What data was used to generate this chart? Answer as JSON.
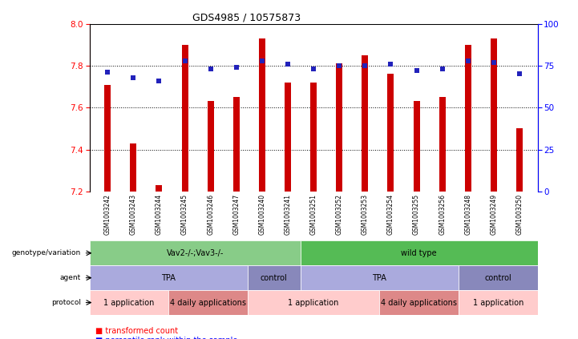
{
  "title": "GDS4985 / 10575873",
  "samples": [
    "GSM1003242",
    "GSM1003243",
    "GSM1003244",
    "GSM1003245",
    "GSM1003246",
    "GSM1003247",
    "GSM1003240",
    "GSM1003241",
    "GSM1003251",
    "GSM1003252",
    "GSM1003253",
    "GSM1003254",
    "GSM1003255",
    "GSM1003256",
    "GSM1003248",
    "GSM1003249",
    "GSM1003250"
  ],
  "bar_values": [
    7.71,
    7.43,
    7.23,
    7.9,
    7.63,
    7.65,
    7.93,
    7.72,
    7.72,
    7.81,
    7.85,
    7.76,
    7.63,
    7.65,
    7.9,
    7.93,
    7.5
  ],
  "dot_values": [
    71,
    68,
    66,
    78,
    73,
    74,
    78,
    76,
    73,
    75,
    75,
    76,
    72,
    73,
    78,
    77,
    70
  ],
  "ylim_left": [
    7.2,
    8.0
  ],
  "ylim_right": [
    0,
    100
  ],
  "yticks_left": [
    7.2,
    7.4,
    7.6,
    7.8,
    8.0
  ],
  "yticks_right": [
    0,
    25,
    50,
    75,
    100
  ],
  "bar_color": "#cc0000",
  "dot_color": "#2222bb",
  "bar_bottom": 7.2,
  "bar_width": 0.25,
  "genotype_row": [
    {
      "label": "Vav2-/-;Vav3-/-",
      "start": 0,
      "end": 8,
      "color": "#88cc88"
    },
    {
      "label": "wild type",
      "start": 8,
      "end": 17,
      "color": "#55bb55"
    }
  ],
  "agent_row": [
    {
      "label": "TPA",
      "start": 0,
      "end": 6,
      "color": "#aaaadd"
    },
    {
      "label": "control",
      "start": 6,
      "end": 8,
      "color": "#8888bb"
    },
    {
      "label": "TPA",
      "start": 8,
      "end": 14,
      "color": "#aaaadd"
    },
    {
      "label": "control",
      "start": 14,
      "end": 17,
      "color": "#8888bb"
    }
  ],
  "protocol_row": [
    {
      "label": "1 application",
      "start": 0,
      "end": 3,
      "color": "#ffcccc"
    },
    {
      "label": "4 daily applications",
      "start": 3,
      "end": 6,
      "color": "#dd8888"
    },
    {
      "label": "1 application",
      "start": 6,
      "end": 11,
      "color": "#ffcccc"
    },
    {
      "label": "4 daily applications",
      "start": 11,
      "end": 14,
      "color": "#dd8888"
    },
    {
      "label": "1 application",
      "start": 14,
      "end": 17,
      "color": "#ffcccc"
    }
  ],
  "row_labels": [
    "genotype/variation",
    "agent",
    "protocol"
  ],
  "xtick_bg": "#cccccc",
  "grid_dotted_values": [
    7.4,
    7.6,
    7.8
  ]
}
